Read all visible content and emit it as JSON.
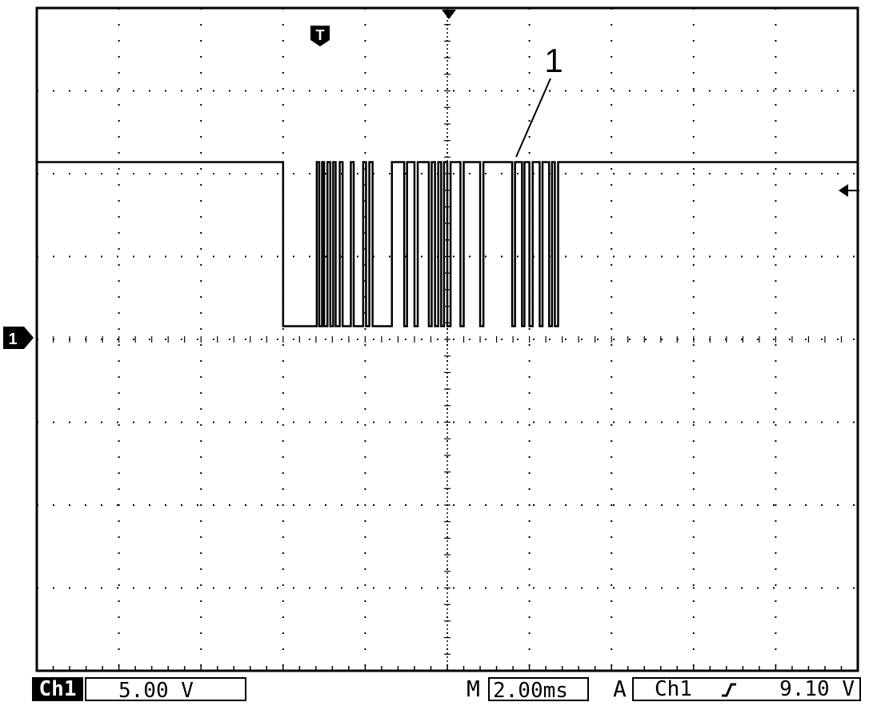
{
  "colors": {
    "background": "#ffffff",
    "trace": "#000000",
    "grid": "#000000"
  },
  "markers": {
    "channel_marker": "1",
    "trigger_marker": "T",
    "annotation": "1"
  },
  "status_bar": {
    "channel_label": "Ch1",
    "volts_per_div": "5.00 V",
    "timebase_prefix": "M",
    "timebase": "2.00ms",
    "trigger_prefix": "A",
    "trigger_source": "Ch1",
    "trigger_slope_icon": "rising-edge-icon",
    "trigger_level": "9.10 V"
  },
  "waveform": {
    "channel": "Ch1",
    "volts_per_div": 5.0,
    "time_per_div_ms": 2.0,
    "low_level_v": 0.8,
    "high_level_v": 10.7,
    "trigger_level_v": 9.1,
    "burst_transitions_ms": [
      -4.0,
      -3.18,
      -3.12,
      -3.05,
      -3.0,
      -2.92,
      -2.85,
      -2.78,
      -2.72,
      -2.62,
      -2.55,
      -2.35,
      -2.28,
      -2.05,
      -1.98,
      -1.9,
      -1.82,
      -1.35,
      -1.05,
      -0.98,
      -0.8,
      -0.72,
      -0.45,
      -0.38,
      -0.3,
      -0.22,
      -0.15,
      -0.08,
      0.0,
      0.08,
      0.32,
      0.4,
      0.8,
      0.88,
      1.58,
      1.65,
      1.82,
      1.88,
      2.0,
      2.08,
      2.25,
      2.32,
      2.48,
      2.55,
      2.62,
      2.7
    ]
  }
}
